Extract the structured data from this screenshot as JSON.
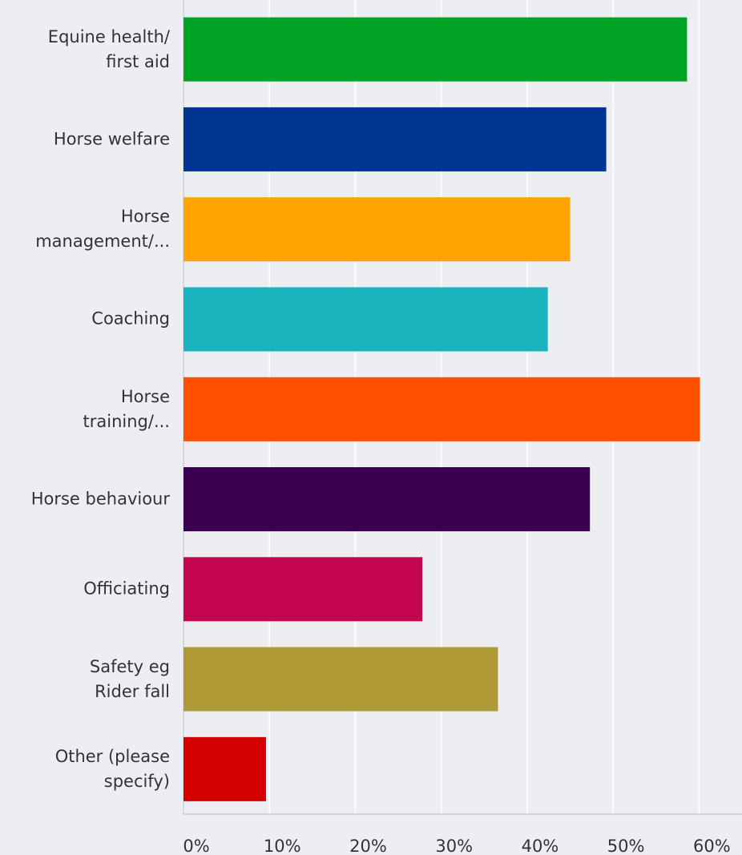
{
  "chart_data": {
    "type": "bar",
    "orientation": "horizontal",
    "categories": [
      "Equine health/\nfirst aid",
      "Horse welfare",
      "Horse\nmanagement/...",
      "Coaching",
      "Horse\ntraining/...",
      "Horse behaviour",
      "Officiating",
      "Safety eg\nRider fall",
      "Other (please\nspecify)"
    ],
    "values": [
      58.6,
      49.2,
      45.0,
      42.4,
      60.1,
      47.3,
      27.8,
      36.6,
      9.6
    ],
    "colors": [
      "#00a324",
      "#003594",
      "#ffa400",
      "#1ab4be",
      "#ff4f00",
      "#3b0051",
      "#c4054f",
      "#b09a35",
      "#d40000"
    ],
    "xlim": [
      0,
      65
    ],
    "xticks": [
      {
        "value": 0,
        "label": "0%"
      },
      {
        "value": 10,
        "label": "10%"
      },
      {
        "value": 20,
        "label": "20%"
      },
      {
        "value": 30,
        "label": "30%"
      },
      {
        "value": 40,
        "label": "40%"
      },
      {
        "value": 50,
        "label": "50%"
      },
      {
        "value": 60,
        "label": "60%"
      }
    ],
    "grid": true
  }
}
